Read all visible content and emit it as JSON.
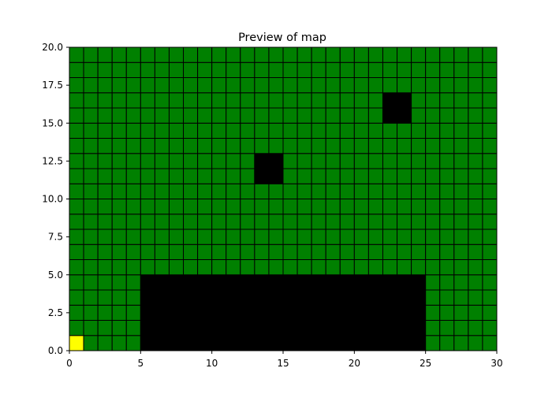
{
  "chart_data": {
    "type": "heatmap",
    "title": "Preview of map",
    "xlabel": "",
    "ylabel": "",
    "xlim": [
      0,
      30
    ],
    "ylim": [
      0,
      20
    ],
    "x_ticks": [
      0,
      5,
      10,
      15,
      20,
      25,
      30
    ],
    "y_ticks": [
      0.0,
      2.5,
      5.0,
      7.5,
      10.0,
      12.5,
      15.0,
      17.5,
      20.0
    ],
    "x_tick_labels": [
      "0",
      "5",
      "10",
      "15",
      "20",
      "25",
      "30"
    ],
    "y_tick_labels": [
      "0.0",
      "2.5",
      "5.0",
      "7.5",
      "10.0",
      "12.5",
      "15.0",
      "17.5",
      "20.0"
    ],
    "grid_cols": 30,
    "grid_rows": 20,
    "cell_colors": {
      "free": "#008000",
      "obstacle": "#000000",
      "start": "#ffff00",
      "border": "#000000"
    },
    "default_cell": "free",
    "regions": [
      {
        "type": "obstacle",
        "x": [
          5,
          25
        ],
        "y": [
          0,
          5
        ]
      },
      {
        "type": "obstacle",
        "x": [
          13,
          15
        ],
        "y": [
          11,
          13
        ]
      },
      {
        "type": "obstacle",
        "x": [
          22,
          24
        ],
        "y": [
          15,
          17
        ]
      },
      {
        "type": "start",
        "x": [
          0,
          1
        ],
        "y": [
          0,
          1
        ]
      }
    ]
  }
}
